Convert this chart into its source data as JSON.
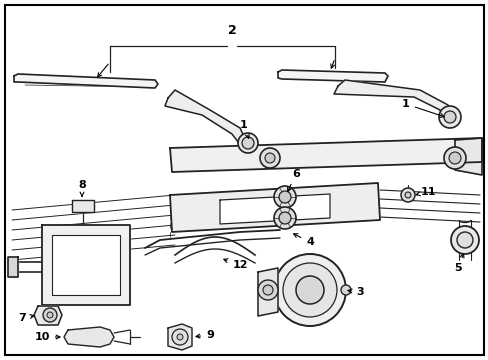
{
  "background_color": "#ffffff",
  "border_color": "#000000",
  "line_color": "#222222",
  "fig_width": 4.89,
  "fig_height": 3.6,
  "dpi": 100
}
